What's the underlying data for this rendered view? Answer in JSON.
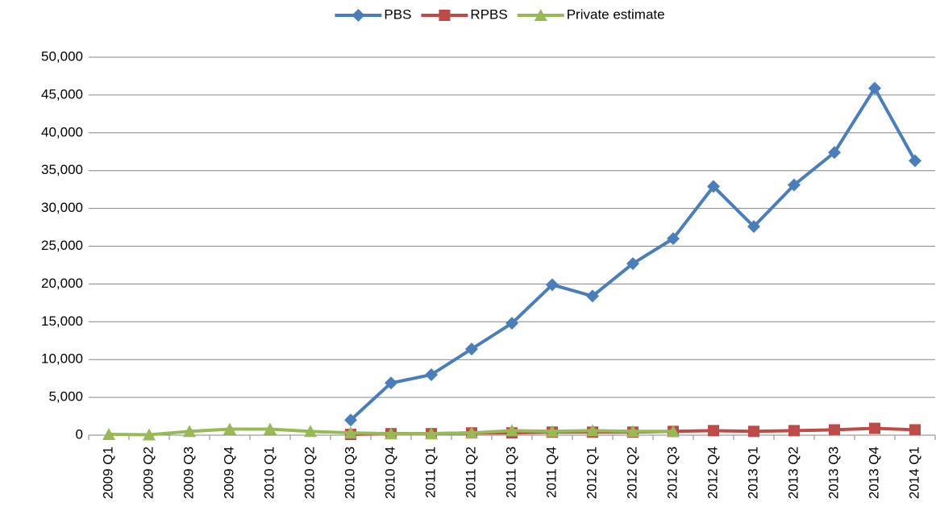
{
  "chart_data": {
    "type": "line",
    "categories": [
      "2009 Q1",
      "2009 Q2",
      "2009 Q3",
      "2009 Q4",
      "2010 Q1",
      "2010 Q2",
      "2010 Q3",
      "2010 Q4",
      "2011 Q1",
      "2011 Q2",
      "2011 Q3",
      "2011 Q4",
      "2012 Q1",
      "2012 Q2",
      "2012 Q3",
      "2012 Q4",
      "2013 Q1",
      "2013 Q2",
      "2013 Q3",
      "2013 Q4",
      "2014 Q1"
    ],
    "series": [
      {
        "name": "PBS",
        "color": "#4a7ebb",
        "marker": "diamond",
        "values": [
          null,
          null,
          null,
          null,
          null,
          null,
          2000,
          6900,
          8000,
          11400,
          14800,
          19900,
          18400,
          22700,
          26000,
          32900,
          27600,
          33100,
          37400,
          45900,
          36300
        ]
      },
      {
        "name": "RPBS",
        "color": "#be4b48",
        "marker": "square",
        "values": [
          null,
          null,
          null,
          null,
          null,
          null,
          100,
          200,
          200,
          300,
          300,
          400,
          400,
          400,
          500,
          600,
          500,
          600,
          700,
          900,
          700
        ]
      },
      {
        "name": "Private estimate",
        "color": "#98b954",
        "marker": "triangle",
        "values": [
          100,
          50,
          500,
          800,
          800,
          500,
          300,
          200,
          200,
          300,
          600,
          500,
          600,
          500,
          500,
          null,
          null,
          null,
          null,
          null,
          null
        ]
      }
    ],
    "ylim": [
      0,
      50000
    ],
    "yticks": [
      0,
      {
        "value": 5000,
        "label": "5,000"
      },
      {
        "value": 10000,
        "label": "10,000"
      },
      {
        "value": 15000,
        "label": "15,000"
      },
      {
        "value": 20000,
        "label": "20,000"
      },
      {
        "value": 25000,
        "label": "25,000"
      },
      {
        "value": 30000,
        "label": "30,000"
      },
      {
        "value": 35000,
        "label": "35,000"
      },
      {
        "value": 40000,
        "label": "40,000"
      },
      {
        "value": 45000,
        "label": "45,000"
      },
      {
        "value": 50000,
        "label": "50,000"
      }
    ],
    "grid": true,
    "legend": "top"
  }
}
